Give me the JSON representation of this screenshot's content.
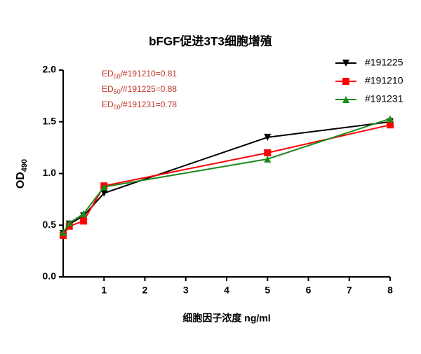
{
  "chart_data": {
    "type": "line",
    "title": "bFGF促进3T3细胞增殖",
    "x_label": "细胞因子浓度 ng/ml",
    "y_label": {
      "main": "OD",
      "sub": "490"
    },
    "annotations": [
      {
        "main": "ED",
        "sub": "50",
        "rest": "/#191210=0.81"
      },
      {
        "main": "ED",
        "sub": "50",
        "rest": "/#191225=0.88"
      },
      {
        "main": "ED",
        "sub": "50",
        "rest": "/#191231=0.78"
      }
    ],
    "x": [
      0,
      0.15,
      0.5,
      1,
      5,
      8
    ],
    "series": [
      {
        "name": "#191225",
        "color": "#000000",
        "marker": "triangle-down",
        "values": [
          0.42,
          0.51,
          0.59,
          0.81,
          1.35,
          1.5
        ]
      },
      {
        "name": "#191210",
        "color": "#ff0000",
        "marker": "square",
        "values": [
          0.4,
          0.49,
          0.54,
          0.88,
          1.2,
          1.47
        ]
      },
      {
        "name": "#191231",
        "color": "#1a8a1a",
        "marker": "triangle-up",
        "values": [
          0.43,
          0.52,
          0.61,
          0.87,
          1.14,
          1.53
        ]
      }
    ],
    "xlim": [
      0,
      8
    ],
    "xticks": [
      1,
      2,
      3,
      4,
      5,
      6,
      7,
      8
    ],
    "ylim": [
      0,
      2
    ],
    "yticks": [
      {
        "value": 0,
        "label": "0.0"
      },
      0.5,
      {
        "value": 1,
        "label": "1.0"
      },
      1.5,
      {
        "value": 2,
        "label": "2.0"
      }
    ],
    "legend": "top-right"
  }
}
